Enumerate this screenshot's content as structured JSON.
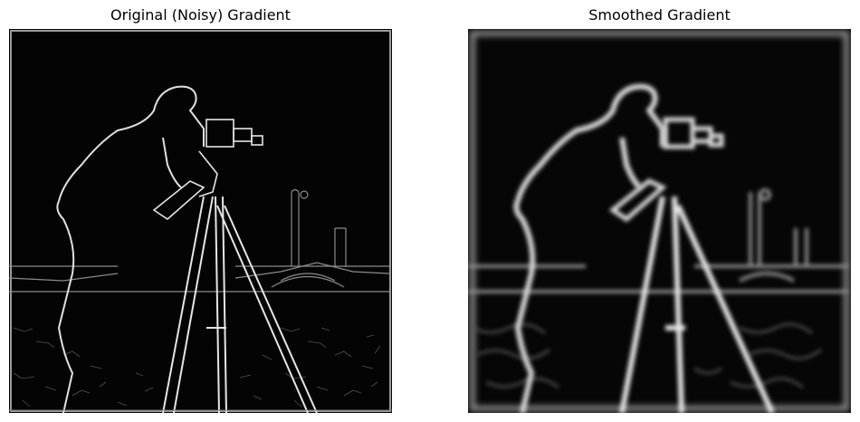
{
  "figure": {
    "panels": [
      {
        "title": "Original (Noisy) Gradient",
        "image": "cameraman-gradient-noisy"
      },
      {
        "title": "Smoothed Gradient",
        "image": "cameraman-gradient-smoothed"
      }
    ],
    "colors": {
      "background": "#ffffff",
      "image_background": "#000000",
      "edge": "#e6e6e6"
    }
  }
}
